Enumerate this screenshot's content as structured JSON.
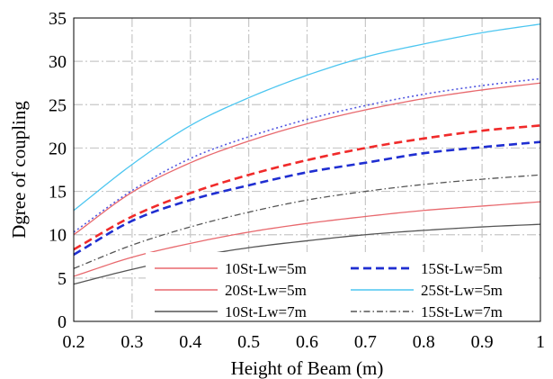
{
  "chart_data": {
    "type": "line",
    "xlabel": "Height of Beam (m)",
    "ylabel": "Dgree of coupling",
    "xlim": [
      0.2,
      1
    ],
    "ylim": [
      0,
      35
    ],
    "xticks": [
      "0.2",
      "0.3",
      "0.4",
      "0.5",
      "0.6",
      "0.7",
      "0.8",
      "0.9",
      "1"
    ],
    "yticks": [
      "0",
      "5",
      "10",
      "15",
      "20",
      "25",
      "30",
      "35"
    ],
    "grid": true,
    "legend_position": "bottom-right",
    "x": [
      0.2,
      0.3,
      0.4,
      0.5,
      0.6,
      0.7,
      0.8,
      0.9,
      1.0
    ],
    "series": [
      {
        "name": "10St-Lw=5m",
        "color": "#e8696e",
        "style": "solid",
        "values": [
          5.2,
          7.4,
          9.0,
          10.3,
          11.3,
          12.1,
          12.8,
          13.3,
          13.8
        ]
      },
      {
        "name": "15St-Lw=5m",
        "color": "#1f2ed1",
        "style": "dashed",
        "values": [
          7.7,
          11.6,
          14.0,
          15.7,
          17.2,
          18.3,
          19.4,
          20.1,
          20.7
        ]
      },
      {
        "name": "20St-Lw=5m",
        "color": "#e8696e",
        "style": "solid",
        "values": [
          10.0,
          14.9,
          18.3,
          20.8,
          22.8,
          24.4,
          25.7,
          26.7,
          27.5
        ]
      },
      {
        "name": "25St-Lw=5m",
        "color": "#4dc6f0",
        "style": "solid",
        "values": [
          12.8,
          18.1,
          22.6,
          25.8,
          28.4,
          30.5,
          32.0,
          33.3,
          34.3
        ]
      },
      {
        "name": "10St-Lw=7m",
        "color": "#555555",
        "style": "solid",
        "values": [
          4.3,
          6.0,
          7.4,
          8.5,
          9.3,
          10.0,
          10.5,
          10.9,
          11.2
        ]
      },
      {
        "name": "15St-Lw=7m",
        "color": "#555555",
        "style": "dashdot",
        "values": [
          6.1,
          8.8,
          10.9,
          12.6,
          14.0,
          15.0,
          15.8,
          16.4,
          16.9
        ]
      },
      {
        "name": "",
        "color": "#f02a2a",
        "style": "dashed",
        "values": [
          8.3,
          12.1,
          14.8,
          16.9,
          18.6,
          20.0,
          21.1,
          22.0,
          22.6
        ]
      },
      {
        "name": "",
        "color": "#5257e0",
        "style": "dotted",
        "values": [
          10.3,
          15.1,
          18.8,
          21.3,
          23.3,
          24.9,
          26.2,
          27.2,
          28.0
        ]
      }
    ],
    "legend": [
      {
        "label": "10St-Lw=5m",
        "series": 0
      },
      {
        "label": "15St-Lw=5m",
        "series": 1
      },
      {
        "label": "20St-Lw=5m",
        "series": 2
      },
      {
        "label": "25St-Lw=5m",
        "series": 3
      },
      {
        "label": "10St-Lw=7m",
        "series": 4
      },
      {
        "label": "15St-Lw=7m",
        "series": 5
      }
    ]
  }
}
